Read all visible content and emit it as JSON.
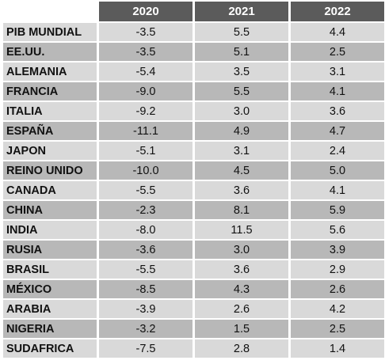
{
  "chart_data": {
    "type": "table",
    "columns": [
      "2020",
      "2021",
      "2022"
    ],
    "rows": [
      {
        "label": "PIB MUNDIAL",
        "values": [
          "-3.5",
          "5.5",
          "4.4"
        ]
      },
      {
        "label": "EE.UU.",
        "values": [
          "-3.5",
          "5.1",
          "2.5"
        ]
      },
      {
        "label": "ALEMANIA",
        "values": [
          "-5.4",
          "3.5",
          "3.1"
        ]
      },
      {
        "label": "FRANCIA",
        "values": [
          "-9.0",
          "5.5",
          "4.1"
        ]
      },
      {
        "label": "ITALIA",
        "values": [
          "-9.2",
          "3.0",
          "3.6"
        ]
      },
      {
        "label": "ESPAÑA",
        "values": [
          "-11.1",
          "4.9",
          "4.7"
        ]
      },
      {
        "label": "JAPON",
        "values": [
          "-5.1",
          "3.1",
          "2.4"
        ]
      },
      {
        "label": "REINO UNIDO",
        "values": [
          "-10.0",
          "4.5",
          "5.0"
        ]
      },
      {
        "label": "CANADA",
        "values": [
          "-5.5",
          "3.6",
          "4.1"
        ]
      },
      {
        "label": "CHINA",
        "values": [
          "-2.3",
          "8.1",
          "5.9"
        ]
      },
      {
        "label": "INDIA",
        "values": [
          "-8.0",
          "11.5",
          "5.6"
        ]
      },
      {
        "label": "RUSIA",
        "values": [
          "-3.6",
          "3.0",
          "3.9"
        ]
      },
      {
        "label": "BRASIL",
        "values": [
          "-5.5",
          "3.6",
          "2.9"
        ]
      },
      {
        "label": "MÉXICO",
        "values": [
          "-8.5",
          "4.3",
          "2.6"
        ]
      },
      {
        "label": "ARABIA",
        "values": [
          "-3.9",
          "2.6",
          "4.2"
        ]
      },
      {
        "label": "NIGERIA",
        "values": [
          "-3.2",
          "1.5",
          "2.5"
        ]
      },
      {
        "label": "SUDAFRICA",
        "values": [
          "-7.5",
          "2.8",
          "1.4"
        ]
      }
    ]
  },
  "colors": {
    "header_bg": "#5b5b5b",
    "row_light": "#d9d9d9",
    "row_dark": "#b8b8b8"
  }
}
